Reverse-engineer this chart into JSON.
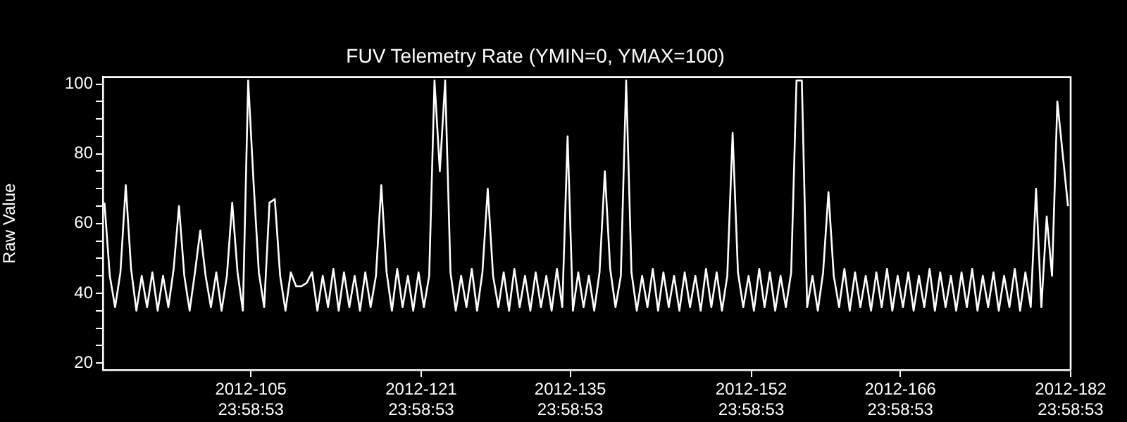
{
  "chart_data": {
    "type": "line",
    "title": "FUV Telemetry Rate (YMIN=0, YMAX=100)",
    "ylabel": "Raw Value",
    "x": [
      "2012-04-01T06:00",
      "2012-04-01T18:00",
      "2012-04-02T06:00",
      "2012-04-02T18:00",
      "2012-04-03T06:00",
      "2012-04-03T18:00",
      "2012-04-04T06:00",
      "2012-04-04T18:00",
      "2012-04-05T06:00",
      "2012-04-05T18:00",
      "2012-04-06T06:00",
      "2012-04-06T18:00",
      "2012-04-07T06:00",
      "2012-04-07T18:00",
      "2012-04-08T06:00",
      "2012-04-08T18:00",
      "2012-04-09T06:00",
      "2012-04-09T18:00",
      "2012-04-10T06:00",
      "2012-04-10T18:00",
      "2012-04-11T06:00",
      "2012-04-11T18:00",
      "2012-04-12T06:00",
      "2012-04-12T18:00",
      "2012-04-13T06:00",
      "2012-04-13T18:00",
      "2012-04-14T06:00",
      "2012-04-14T18:00",
      "2012-04-15T06:00",
      "2012-04-15T18:00",
      "2012-04-16T06:00",
      "2012-04-16T18:00",
      "2012-04-17T06:00",
      "2012-04-17T18:00",
      "2012-04-18T06:00",
      "2012-04-18T18:00",
      "2012-04-19T06:00",
      "2012-04-19T18:00",
      "2012-04-20T06:00",
      "2012-04-20T18:00",
      "2012-04-21T06:00",
      "2012-04-21T18:00",
      "2012-04-22T06:00",
      "2012-04-22T18:00",
      "2012-04-23T06:00",
      "2012-04-23T18:00",
      "2012-04-24T06:00",
      "2012-04-24T18:00",
      "2012-04-25T06:00",
      "2012-04-25T18:00",
      "2012-04-26T06:00",
      "2012-04-26T18:00",
      "2012-04-27T06:00",
      "2012-04-27T18:00",
      "2012-04-28T06:00",
      "2012-04-28T18:00",
      "2012-04-29T06:00",
      "2012-04-29T18:00",
      "2012-04-30T06:00",
      "2012-04-30T18:00",
      "2012-05-01T06:00",
      "2012-05-01T18:00",
      "2012-05-02T06:00",
      "2012-05-02T18:00",
      "2012-05-03T06:00",
      "2012-05-03T18:00",
      "2012-05-04T06:00",
      "2012-05-04T18:00",
      "2012-05-05T06:00",
      "2012-05-05T18:00",
      "2012-05-06T06:00",
      "2012-05-06T18:00",
      "2012-05-07T06:00",
      "2012-05-07T18:00",
      "2012-05-08T06:00",
      "2012-05-08T18:00",
      "2012-05-09T06:00",
      "2012-05-09T18:00",
      "2012-05-10T06:00",
      "2012-05-10T18:00",
      "2012-05-11T06:00",
      "2012-05-11T18:00",
      "2012-05-12T06:00",
      "2012-05-12T18:00",
      "2012-05-13T06:00",
      "2012-05-13T18:00",
      "2012-05-14T06:00",
      "2012-05-14T18:00",
      "2012-05-15T06:00",
      "2012-05-15T18:00",
      "2012-05-16T06:00",
      "2012-05-16T18:00",
      "2012-05-17T06:00",
      "2012-05-17T18:00",
      "2012-05-18T06:00",
      "2012-05-18T18:00",
      "2012-05-19T06:00",
      "2012-05-19T18:00",
      "2012-05-20T06:00",
      "2012-05-20T18:00",
      "2012-05-21T06:00",
      "2012-05-21T18:00",
      "2012-05-22T06:00",
      "2012-05-22T18:00",
      "2012-05-23T06:00",
      "2012-05-23T18:00",
      "2012-05-24T06:00",
      "2012-05-24T18:00",
      "2012-05-25T06:00",
      "2012-05-25T18:00",
      "2012-05-26T06:00",
      "2012-05-26T18:00",
      "2012-05-27T06:00",
      "2012-05-27T18:00",
      "2012-05-28T06:00",
      "2012-05-28T18:00",
      "2012-05-29T06:00",
      "2012-05-29T18:00",
      "2012-05-30T06:00",
      "2012-05-30T18:00",
      "2012-05-31T06:00",
      "2012-05-31T18:00",
      "2012-06-01T06:00",
      "2012-06-01T18:00",
      "2012-06-02T06:00",
      "2012-06-02T18:00",
      "2012-06-03T06:00",
      "2012-06-03T18:00",
      "2012-06-04T06:00",
      "2012-06-04T18:00",
      "2012-06-05T06:00",
      "2012-06-05T18:00",
      "2012-06-06T06:00",
      "2012-06-06T18:00",
      "2012-06-07T06:00",
      "2012-06-07T18:00",
      "2012-06-08T06:00",
      "2012-06-08T18:00",
      "2012-06-09T06:00",
      "2012-06-09T18:00",
      "2012-06-10T06:00",
      "2012-06-10T18:00",
      "2012-06-11T06:00",
      "2012-06-11T18:00",
      "2012-06-12T06:00",
      "2012-06-12T18:00",
      "2012-06-13T06:00",
      "2012-06-13T18:00",
      "2012-06-14T06:00",
      "2012-06-14T18:00",
      "2012-06-15T06:00",
      "2012-06-15T18:00",
      "2012-06-16T06:00",
      "2012-06-16T18:00",
      "2012-06-17T06:00",
      "2012-06-17T18:00",
      "2012-06-18T06:00",
      "2012-06-18T18:00",
      "2012-06-19T06:00",
      "2012-06-19T18:00",
      "2012-06-20T06:00",
      "2012-06-20T18:00",
      "2012-06-21T06:00",
      "2012-06-21T18:00",
      "2012-06-22T06:00",
      "2012-06-22T18:00",
      "2012-06-23T06:00",
      "2012-06-23T18:00",
      "2012-06-24T06:00",
      "2012-06-24T18:00",
      "2012-06-25T06:00",
      "2012-06-25T18:00",
      "2012-06-26T06:00",
      "2012-06-26T18:00",
      "2012-06-27T06:00",
      "2012-06-27T18:00",
      "2012-06-28T06:00",
      "2012-06-28T18:00",
      "2012-06-29T06:00",
      "2012-06-29T18:00",
      "2012-06-30T06:00",
      "2012-06-30T18:00"
    ],
    "series": [
      {
        "color": "#ffffff",
        "values": [
          66,
          45,
          36,
          46,
          71,
          47,
          35,
          45,
          36,
          46,
          35,
          45,
          36,
          47,
          65,
          45,
          35,
          46,
          58,
          45,
          36,
          46,
          35,
          45,
          66,
          46,
          35,
          101,
          72,
          46,
          36,
          66,
          67,
          45,
          35,
          46,
          42,
          42,
          43,
          46,
          35,
          45,
          36,
          47,
          35,
          46,
          36,
          45,
          35,
          46,
          36,
          45,
          71,
          46,
          35,
          47,
          36,
          45,
          35,
          46,
          36,
          45,
          101,
          75,
          101,
          46,
          35,
          45,
          36,
          47,
          35,
          46,
          70,
          45,
          36,
          46,
          35,
          47,
          36,
          45,
          35,
          46,
          36,
          45,
          35,
          47,
          36,
          85,
          35,
          46,
          36,
          45,
          35,
          46,
          75,
          47,
          36,
          45,
          101,
          46,
          35,
          45,
          36,
          47,
          35,
          46,
          36,
          45,
          35,
          46,
          36,
          45,
          35,
          47,
          36,
          46,
          35,
          45,
          86,
          46,
          36,
          45,
          35,
          47,
          36,
          46,
          35,
          45,
          36,
          46,
          101,
          101,
          36,
          45,
          35,
          46,
          69,
          45,
          36,
          47,
          35,
          46,
          36,
          45,
          35,
          46,
          36,
          47,
          35,
          45,
          36,
          46,
          35,
          45,
          36,
          47,
          35,
          46,
          36,
          45,
          35,
          46,
          36,
          47,
          35,
          45,
          36,
          46,
          35,
          45,
          36,
          47,
          35,
          46,
          36,
          70,
          36,
          62,
          45,
          95,
          80,
          65
        ]
      }
    ],
    "xlim": [
      "2012-04-01T02:20",
      "2012-06-30T23:58:53"
    ],
    "xticks": [
      {
        "value": "2012-04-14T23:58:53",
        "label": "2012-105\n23:58:53"
      },
      {
        "value": "2012-04-30T23:58:53",
        "label": "2012-121\n23:58:53"
      },
      {
        "value": "2012-05-14T23:58:53",
        "label": "2012-135\n23:58:53"
      },
      {
        "value": "2012-05-31T23:58:53",
        "label": "2012-152\n23:58:53"
      },
      {
        "value": "2012-06-14T23:58:53",
        "label": "2012-166\n23:58:53"
      },
      {
        "value": "2012-06-30T23:58:53",
        "label": "2012-182\n23:58:53"
      }
    ],
    "ylim": [
      18,
      102
    ],
    "yticks": [
      20,
      {
        "value": 25,
        "label": null
      },
      {
        "value": 30,
        "label": null
      },
      {
        "value": 35,
        "label": null
      },
      40,
      {
        "value": 45,
        "label": null
      },
      {
        "value": 50,
        "label": null
      },
      {
        "value": 55,
        "label": null
      },
      60,
      {
        "value": 65,
        "label": null
      },
      {
        "value": 70,
        "label": null
      },
      {
        "value": 75,
        "label": null
      },
      80,
      {
        "value": 85,
        "label": null
      },
      {
        "value": 90,
        "label": null
      },
      {
        "value": 95,
        "label": null
      },
      100
    ],
    "grid": false,
    "legend": false,
    "marker": "none",
    "line_style": "solid"
  }
}
